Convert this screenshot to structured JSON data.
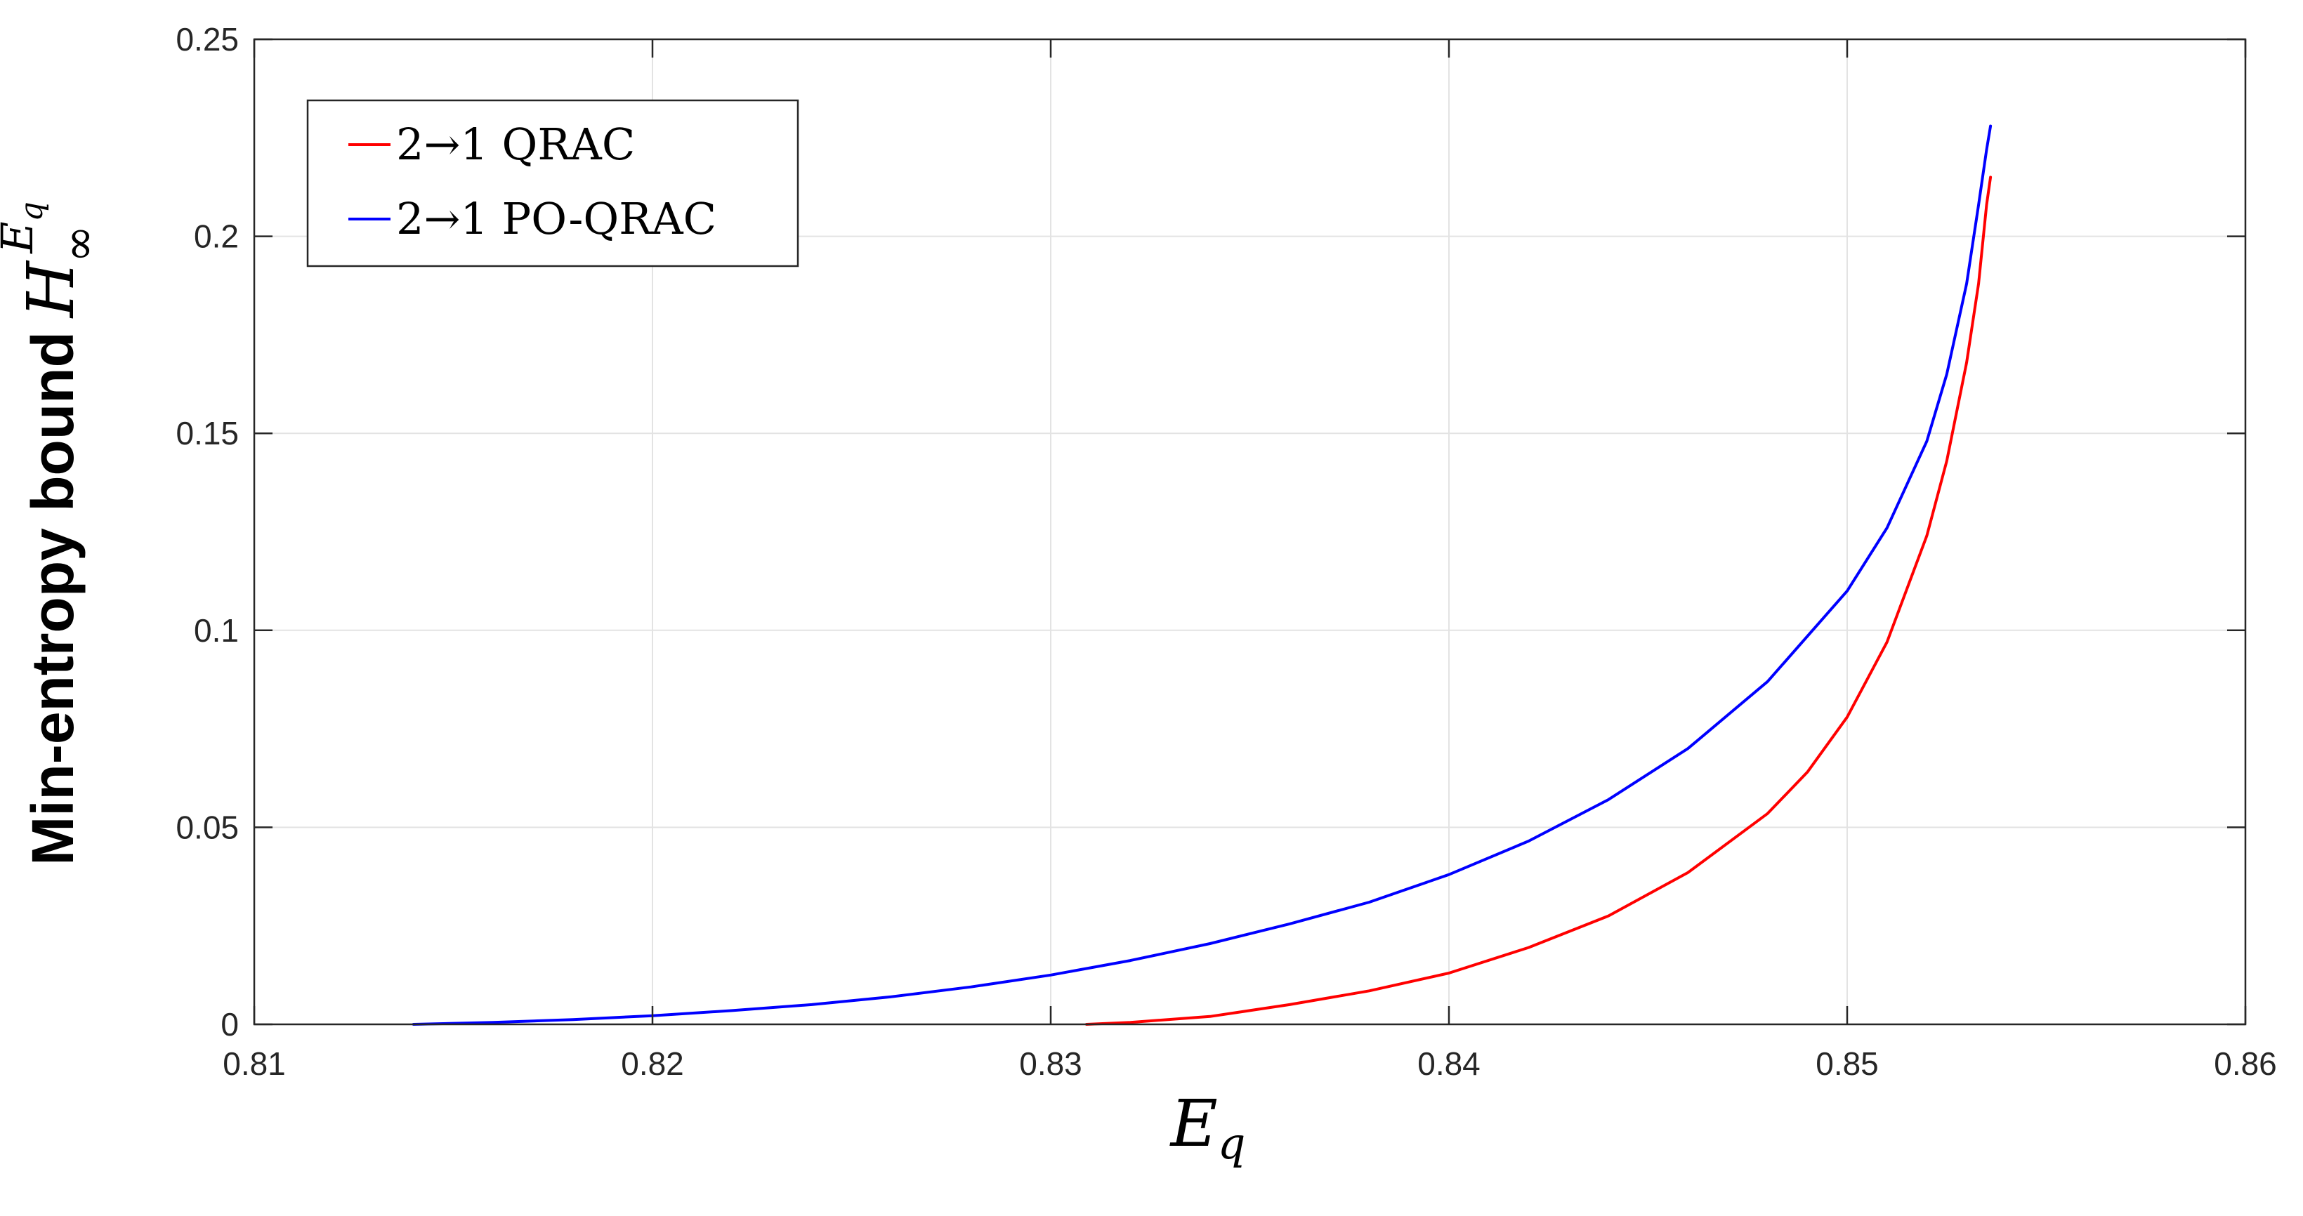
{
  "chart_data": {
    "type": "line",
    "xlabel": {
      "base": "E",
      "sub": "q"
    },
    "ylabel": {
      "text": "Min-entropy bound",
      "base": "H",
      "sub": "∞",
      "sup_base": "E",
      "sup_sub": "q"
    },
    "xlim": [
      0.81,
      0.86
    ],
    "ylim": [
      0,
      0.25
    ],
    "xticks": [
      "0.81",
      "0.82",
      "0.83",
      "0.84",
      "0.85",
      "0.86"
    ],
    "yticks": [
      "0",
      "0.05",
      "0.1",
      "0.15",
      "0.2",
      "0.25"
    ],
    "grid": true,
    "legend_position": "top-left",
    "series": [
      {
        "name": "2→1 QRAC",
        "color": "#ff0000",
        "x": [
          0.8309,
          0.832,
          0.834,
          0.836,
          0.838,
          0.84,
          0.842,
          0.844,
          0.846,
          0.848,
          0.849,
          0.85,
          0.851,
          0.852,
          0.8525,
          0.853,
          0.8533,
          0.8535,
          0.8536
        ],
        "y": [
          0.0,
          0.0005,
          0.002,
          0.005,
          0.0085,
          0.013,
          0.0195,
          0.0275,
          0.0385,
          0.0535,
          0.064,
          0.078,
          0.097,
          0.124,
          0.143,
          0.168,
          0.188,
          0.208,
          0.215
        ]
      },
      {
        "name": "2→1 PO-QRAC",
        "color": "#0000ff",
        "x": [
          0.814,
          0.816,
          0.818,
          0.82,
          0.822,
          0.824,
          0.826,
          0.828,
          0.83,
          0.832,
          0.834,
          0.836,
          0.838,
          0.84,
          0.842,
          0.844,
          0.846,
          0.848,
          0.85,
          0.851,
          0.852,
          0.8525,
          0.853,
          0.8533,
          0.8535,
          0.8536
        ],
        "y": [
          0.0,
          0.0005,
          0.0012,
          0.0022,
          0.0035,
          0.005,
          0.007,
          0.0095,
          0.0125,
          0.0162,
          0.0205,
          0.0255,
          0.031,
          0.038,
          0.0465,
          0.057,
          0.07,
          0.087,
          0.11,
          0.126,
          0.148,
          0.165,
          0.188,
          0.208,
          0.222,
          0.228
        ]
      }
    ]
  }
}
